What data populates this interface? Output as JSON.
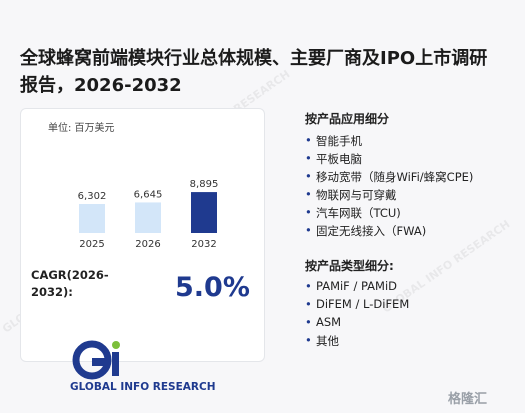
{
  "header": {
    "title_line1": "全球蜂窝前端模块行业总体规模、主要厂商及IPO上市调研",
    "title_line2": "报告，2026-2032"
  },
  "chart": {
    "unit": "单位: 百万美元",
    "categories": [
      "2025",
      "2026",
      "2032"
    ],
    "values": [
      6302,
      6645,
      8895
    ],
    "value_labels": [
      "6,302",
      "6,645",
      "8,895"
    ],
    "colors": [
      "#d3e6f9",
      "#d3e6f9",
      "#1f3a8f"
    ]
  },
  "cagr": {
    "label_line1": "CAGR(2026-",
    "label_line2": "2032):",
    "value": "5.0%"
  },
  "logo": "GLOBAL INFO RESEARCH",
  "watermark": "GLOBAL INFO RESEARCH",
  "source": "格隆汇",
  "right": {
    "sections": [
      {
        "heading": "按产品应用细分",
        "items": [
          "智能手机",
          "平板电脑",
          "移动宽带（随身WiFi/蜂窝CPE)",
          "物联网与可穿戴",
          "汽车网联（TCU)",
          "固定无线接入（FWA)"
        ]
      },
      {
        "heading": "按产品类型细分:",
        "items": [
          "PAMiF / PAMiD",
          "DiFEM / L-DiFEM",
          "ASM",
          "其他"
        ]
      }
    ]
  }
}
